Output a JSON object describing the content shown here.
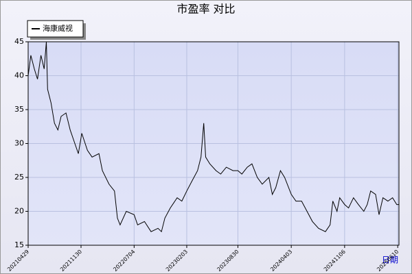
{
  "chart_data": {
    "type": "line",
    "title": "市盈率  对比",
    "x_label": "日期",
    "x": [
      "20210429",
      "20210510",
      "20210524",
      "20210606",
      "20210620",
      "20210703",
      "20210712",
      "20210717",
      "20210731",
      "20210814",
      "20210828",
      "20210910",
      "20210930",
      "20211017",
      "20211105",
      "20211119",
      "20211203",
      "20211226",
      "20220114",
      "20220211",
      "20220225",
      "20220324",
      "20220415",
      "20220427",
      "20220508",
      "20220602",
      "20220704",
      "20220718",
      "20220815",
      "20220911",
      "20221009",
      "20221023",
      "20221106",
      "20221128",
      "20221226",
      "20230114",
      "20230203",
      "20230225",
      "20230319",
      "20230402",
      "20230413",
      "20230421",
      "20230508",
      "20230602",
      "20230621",
      "20230714",
      "20230810",
      "20230830",
      "20230915",
      "20231007",
      "20231026",
      "20231117",
      "20231207",
      "20240103",
      "20240117",
      "20240131",
      "20240219",
      "20240307",
      "20240403",
      "20240422",
      "20240515",
      "20240606",
      "20240628",
      "20240723",
      "20240820",
      "20240908",
      "20240919",
      "20241006",
      "20241017",
      "20241106",
      "20241122",
      "20241212",
      "20250101",
      "20250123",
      "20250206",
      "20250220",
      "20250312",
      "20250326",
      "20250411",
      "20250501",
      "20250520",
      "20250606",
      "20250615"
    ],
    "series": [
      {
        "name": "海康威视",
        "color": "#000000",
        "values": [
          40,
          43,
          41,
          39.5,
          43,
          41,
          45,
          38,
          36,
          33,
          32,
          34,
          34.5,
          32,
          30,
          28.5,
          31.5,
          29,
          28,
          28.5,
          26,
          24,
          23,
          19,
          18,
          20,
          19.5,
          18,
          18.5,
          17,
          17.5,
          17,
          19,
          20.5,
          22,
          21.5,
          23,
          24.5,
          26,
          28,
          33,
          28,
          27,
          26,
          25.5,
          26.5,
          26,
          26,
          25.5,
          26.5,
          27,
          25,
          24,
          25,
          22.5,
          23.5,
          26,
          25,
          22.5,
          21.5,
          21.5,
          20,
          18.5,
          17.5,
          17,
          18,
          21.5,
          20,
          22,
          21,
          20.5,
          22,
          21,
          20,
          21,
          23,
          22.5,
          19.5,
          22,
          21.5,
          22,
          21,
          21
        ]
      }
    ],
    "xlim": [
      "20210429",
      "20250615"
    ],
    "xticks": [
      "20210429",
      "20211130",
      "20220704",
      "20230203",
      "20230830",
      "20240403",
      "20241106",
      "20250610"
    ],
    "ylim": [
      15,
      45
    ],
    "yticks": [
      15,
      20,
      25,
      30,
      35,
      40,
      45
    ],
    "grid": true
  }
}
